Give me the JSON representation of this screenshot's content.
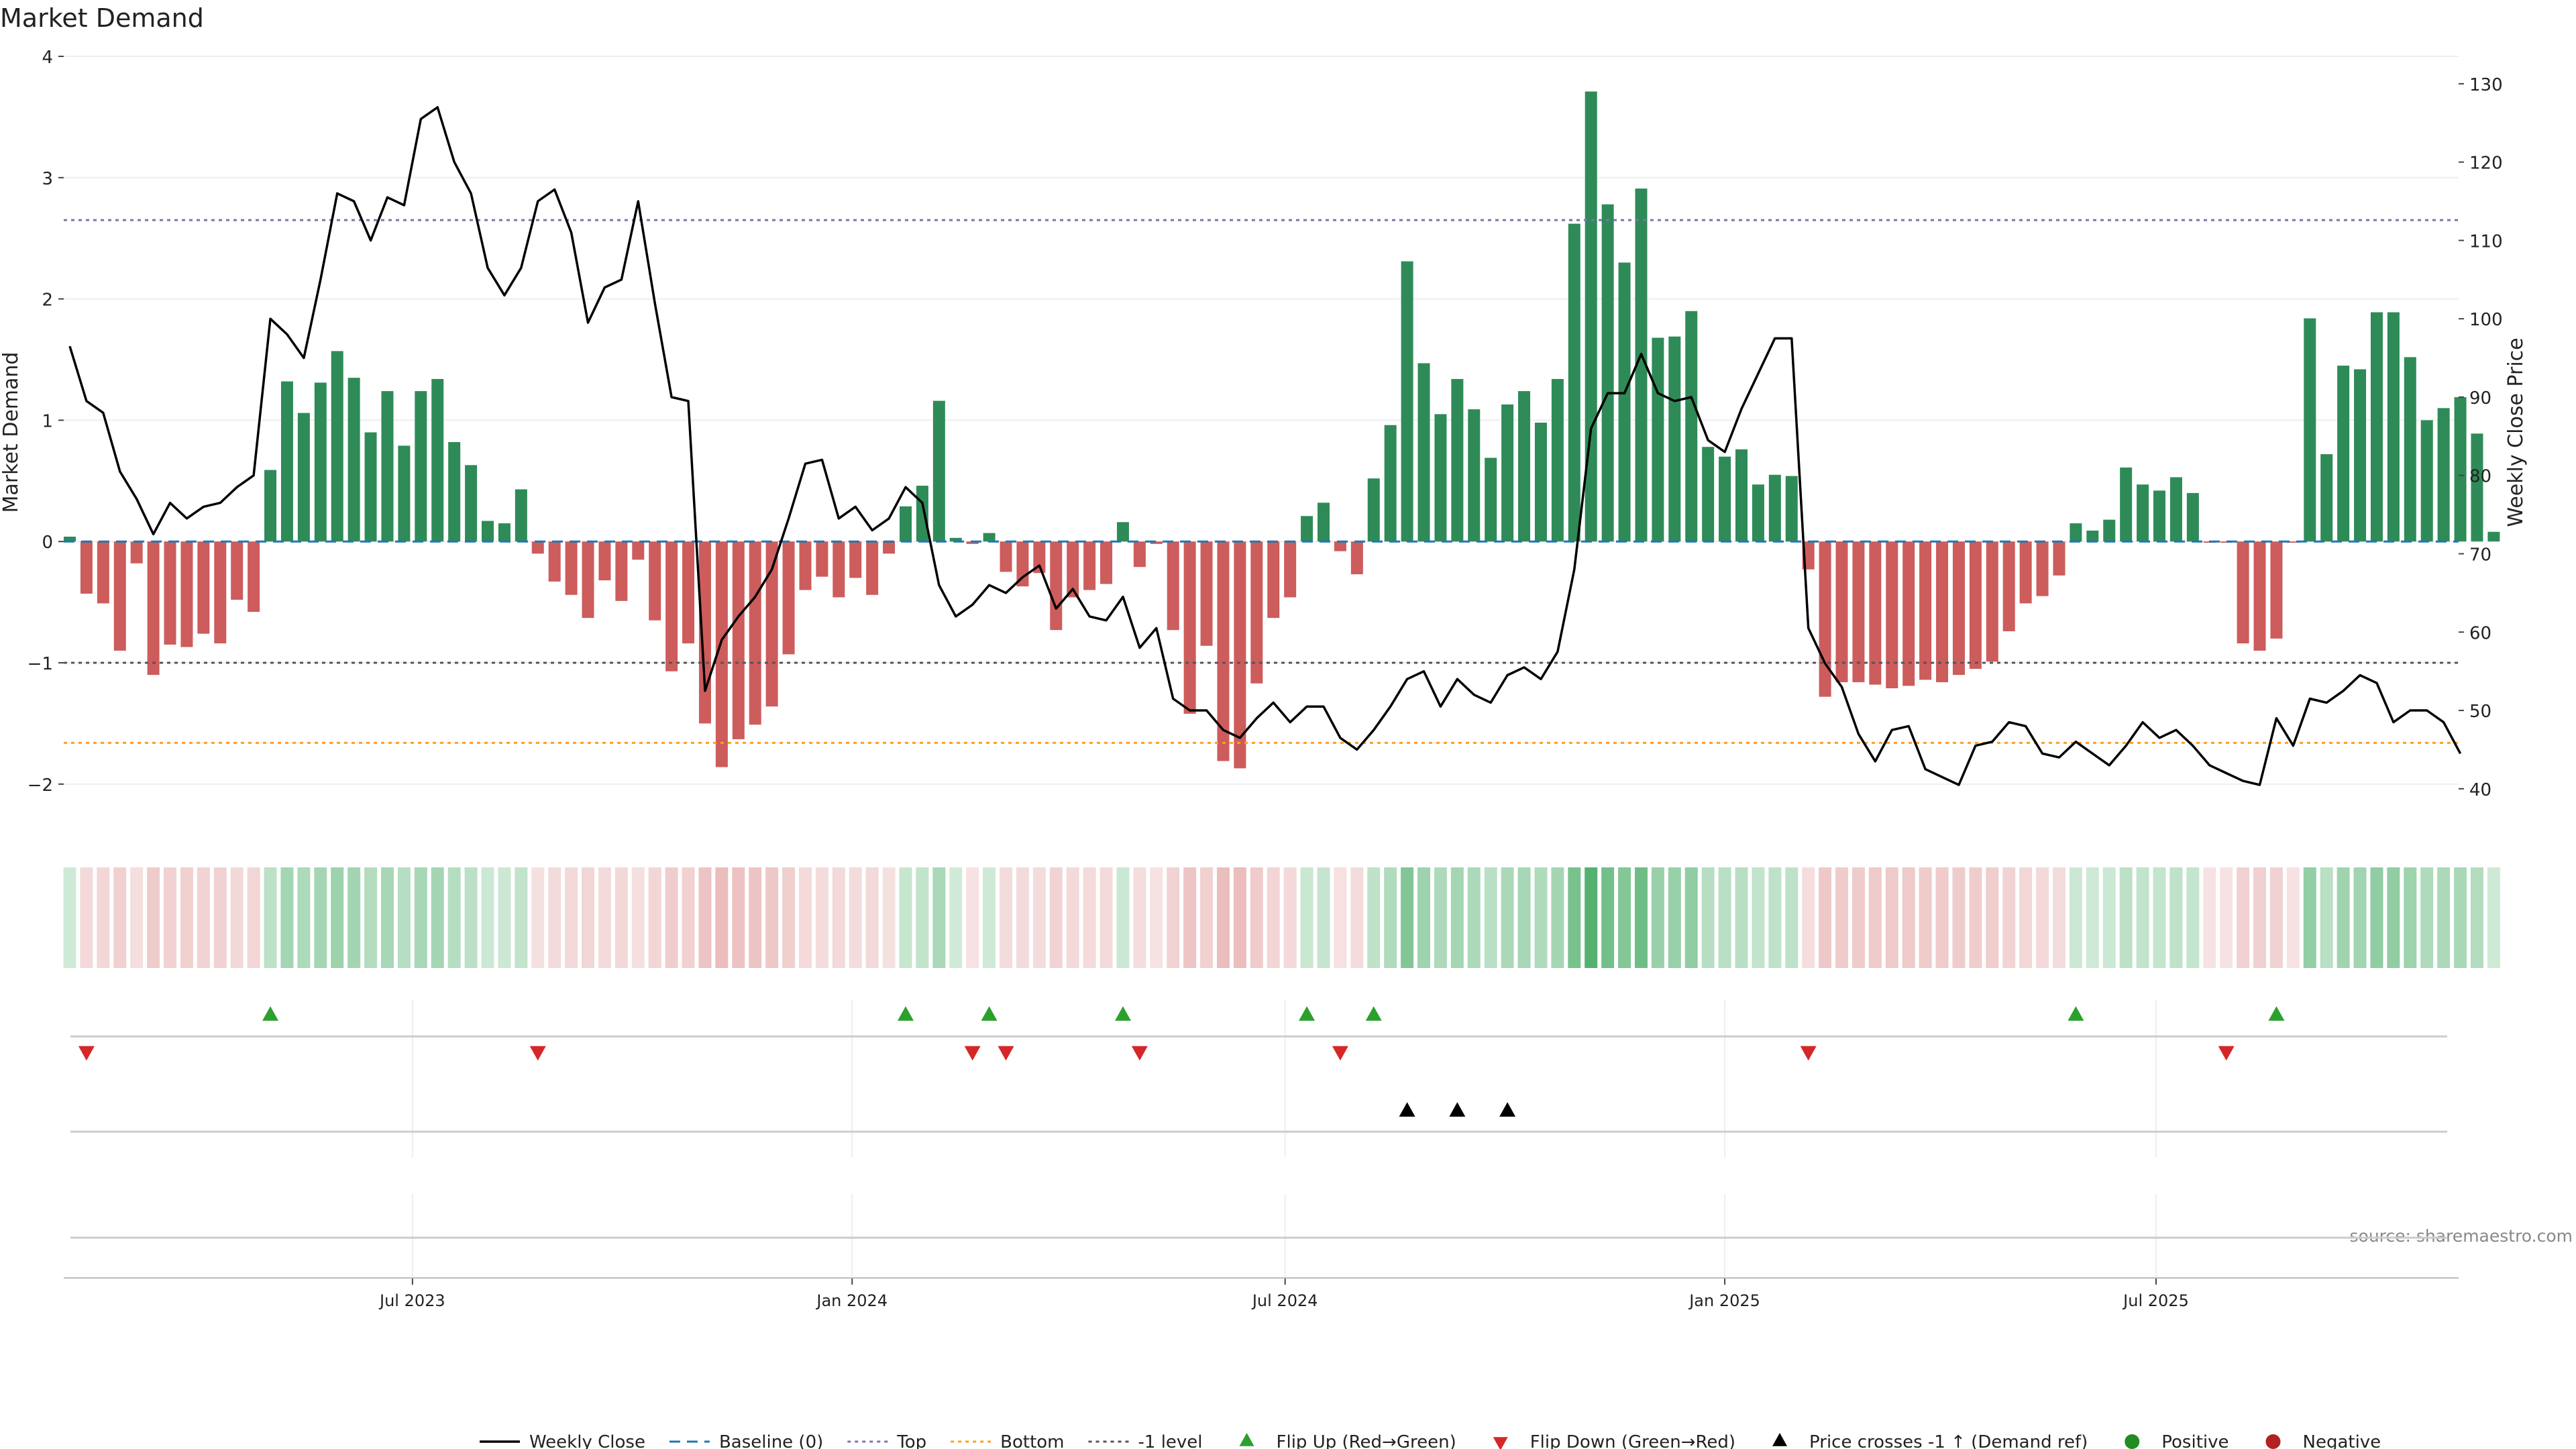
{
  "chart_data": {
    "type": "bar",
    "title": "Market Demand",
    "ylabel": "Market Demand",
    "y2label": "Weekly Close Price",
    "source": "source: sharemaestro.com",
    "ylim": [
      -2.2,
      4.0
    ],
    "y2lim": [
      37.5,
      133.5
    ],
    "yticks": [
      {
        "v": -2,
        "label": "−2"
      },
      {
        "v": -1,
        "label": "−1"
      },
      {
        "v": 0,
        "label": "0"
      },
      {
        "v": 1,
        "label": "1"
      },
      {
        "v": 2,
        "label": "2"
      },
      {
        "v": 3,
        "label": "3"
      },
      {
        "v": 4,
        "label": "4"
      }
    ],
    "y2ticks": [
      {
        "v": 40,
        "label": "40"
      },
      {
        "v": 50,
        "label": "50"
      },
      {
        "v": 60,
        "label": "60"
      },
      {
        "v": 70,
        "label": "70"
      },
      {
        "v": 80,
        "label": "80"
      },
      {
        "v": 90,
        "label": "90"
      },
      {
        "v": 100,
        "label": "100"
      },
      {
        "v": 110,
        "label": "110"
      },
      {
        "v": 120,
        "label": "120"
      },
      {
        "v": 130,
        "label": "130"
      }
    ],
    "xticks": [
      {
        "week": 20.5,
        "label": "Jul 2023"
      },
      {
        "week": 46.8,
        "label": "Jan 2024"
      },
      {
        "week": 72.7,
        "label": "Jul 2024"
      },
      {
        "week": 99.0,
        "label": "Jan 2025"
      },
      {
        "week": 124.8,
        "label": "Jul 2025"
      }
    ],
    "levels": {
      "top": 2.65,
      "bottom": -1.66,
      "minus_one": -1.0
    },
    "colors": {
      "positive": "#2e8b57",
      "negative": "#cd5c5c",
      "price": "#000000",
      "baseline": "#1f77b4",
      "top": "#8070b0",
      "bottom": "#ff9f1c",
      "minus_one": "#555555",
      "flip_up": "#2ca02c",
      "flip_down": "#d62728",
      "cross": "#000000",
      "dot_positive": "#228b22",
      "dot_negative": "#b22222"
    },
    "series": [
      {
        "name": "Market Demand",
        "values": [
          0.04,
          -0.43,
          -0.51,
          -0.9,
          -0.18,
          -1.1,
          -0.85,
          -0.87,
          -0.76,
          -0.84,
          -0.48,
          -0.58,
          0.59,
          1.32,
          1.06,
          1.31,
          1.57,
          1.35,
          0.9,
          1.24,
          0.79,
          1.24,
          1.34,
          0.82,
          0.63,
          0.17,
          0.15,
          0.43,
          -0.1,
          -0.33,
          -0.44,
          -0.63,
          -0.32,
          -0.49,
          -0.15,
          -0.65,
          -1.07,
          -0.84,
          -1.5,
          -1.86,
          -1.63,
          -1.51,
          -1.36,
          -0.93,
          -0.4,
          -0.29,
          -0.46,
          -0.3,
          -0.44,
          -0.1,
          0.29,
          0.46,
          1.16,
          0.03,
          -0.02,
          0.07,
          -0.25,
          -0.37,
          -0.26,
          -0.73,
          -0.46,
          -0.4,
          -0.35,
          0.16,
          -0.21,
          -0.02,
          -0.73,
          -1.42,
          -0.86,
          -1.81,
          -1.87,
          -1.17,
          -0.63,
          -0.46,
          0.21,
          0.32,
          -0.08,
          -0.27,
          0.52,
          0.96,
          2.31,
          1.47,
          1.05,
          1.34,
          1.09,
          0.69,
          1.13,
          1.24,
          0.98,
          1.34,
          2.62,
          3.71,
          2.78,
          2.3,
          2.91,
          1.68,
          1.69,
          1.9,
          0.78,
          0.7,
          0.76,
          0.47,
          0.55,
          0.54,
          -0.23,
          -1.28,
          -1.16,
          -1.16,
          -1.18,
          -1.21,
          -1.19,
          -1.14,
          -1.16,
          -1.1,
          -1.05,
          -0.99,
          -0.74,
          -0.51,
          -0.45,
          -0.28,
          0.15,
          0.09,
          0.18,
          0.61,
          0.47,
          0.42,
          0.53,
          0.4,
          -0.01,
          -0.01,
          -0.84,
          -0.9,
          -0.8,
          -0.01,
          1.84,
          0.72,
          1.45,
          1.42,
          1.89,
          1.89,
          1.52,
          1.0,
          1.1,
          1.19,
          0.89,
          0.08
        ]
      },
      {
        "name": "Weekly Close",
        "values": [
          96.5,
          89.5,
          88,
          80.5,
          77,
          72.5,
          76.5,
          74.5,
          76,
          76.5,
          78.5,
          80,
          100,
          98,
          95,
          105,
          116,
          115,
          110,
          115.5,
          114.5,
          125.5,
          127,
          120,
          116,
          106.5,
          103,
          106.5,
          115,
          116.5,
          111,
          99.5,
          104,
          105,
          115,
          102,
          90,
          89.5,
          52.5,
          59,
          62,
          64.5,
          68,
          74.5,
          81.5,
          82,
          74.5,
          76,
          73,
          74.5,
          78.5,
          76.5,
          66,
          62,
          63.5,
          66,
          65,
          67,
          68.5,
          63,
          65.5,
          62,
          61.5,
          64.5,
          58,
          60.5,
          51.5,
          50,
          50,
          47.5,
          46.5,
          49,
          51,
          48.5,
          50.5,
          50.5,
          46.5,
          45,
          47.5,
          50.5,
          54,
          55,
          50.5,
          54,
          52,
          51,
          54.5,
          55.5,
          54,
          57.5,
          68,
          86,
          90.5,
          90.5,
          95.5,
          90.5,
          89.5,
          90,
          84.5,
          83,
          88.5,
          93,
          97.5,
          97.5,
          60.5,
          56,
          53,
          47,
          43.5,
          47.5,
          48,
          42.5,
          41.5,
          40.5,
          45.5,
          46,
          48.5,
          48,
          44.5,
          44,
          46,
          44.5,
          43,
          45.5,
          48.5,
          46.5,
          47.5,
          45.5,
          43,
          42,
          41,
          40.5,
          49,
          45.5,
          51.5,
          51,
          52.5,
          54.5,
          53.5,
          48.5,
          50,
          50,
          48.5,
          44.5
        ]
      }
    ],
    "flip_up_weeks": [
      12,
      50,
      55,
      63,
      74,
      78,
      120,
      132
    ],
    "flip_down_weeks": [
      1,
      28,
      54,
      56,
      64,
      76,
      104,
      129
    ],
    "price_cross_weeks": [
      80,
      83,
      86
    ],
    "legend": [
      {
        "kind": "line",
        "label": "Weekly Close"
      },
      {
        "kind": "baseline",
        "label": "Baseline (0)"
      },
      {
        "kind": "top",
        "label": "Top"
      },
      {
        "kind": "bottom",
        "label": "Bottom"
      },
      {
        "kind": "minus",
        "label": "-1 level"
      },
      {
        "kind": "tri-up",
        "label": "Flip Up (Red→Green)"
      },
      {
        "kind": "tri-down",
        "label": "Flip Down (Green→Red)"
      },
      {
        "kind": "tri-black",
        "label": "Price crosses -1 ↑ (Demand ref)"
      },
      {
        "kind": "dot-pos",
        "label": "Positive"
      },
      {
        "kind": "dot-neg",
        "label": "Negative"
      }
    ]
  }
}
